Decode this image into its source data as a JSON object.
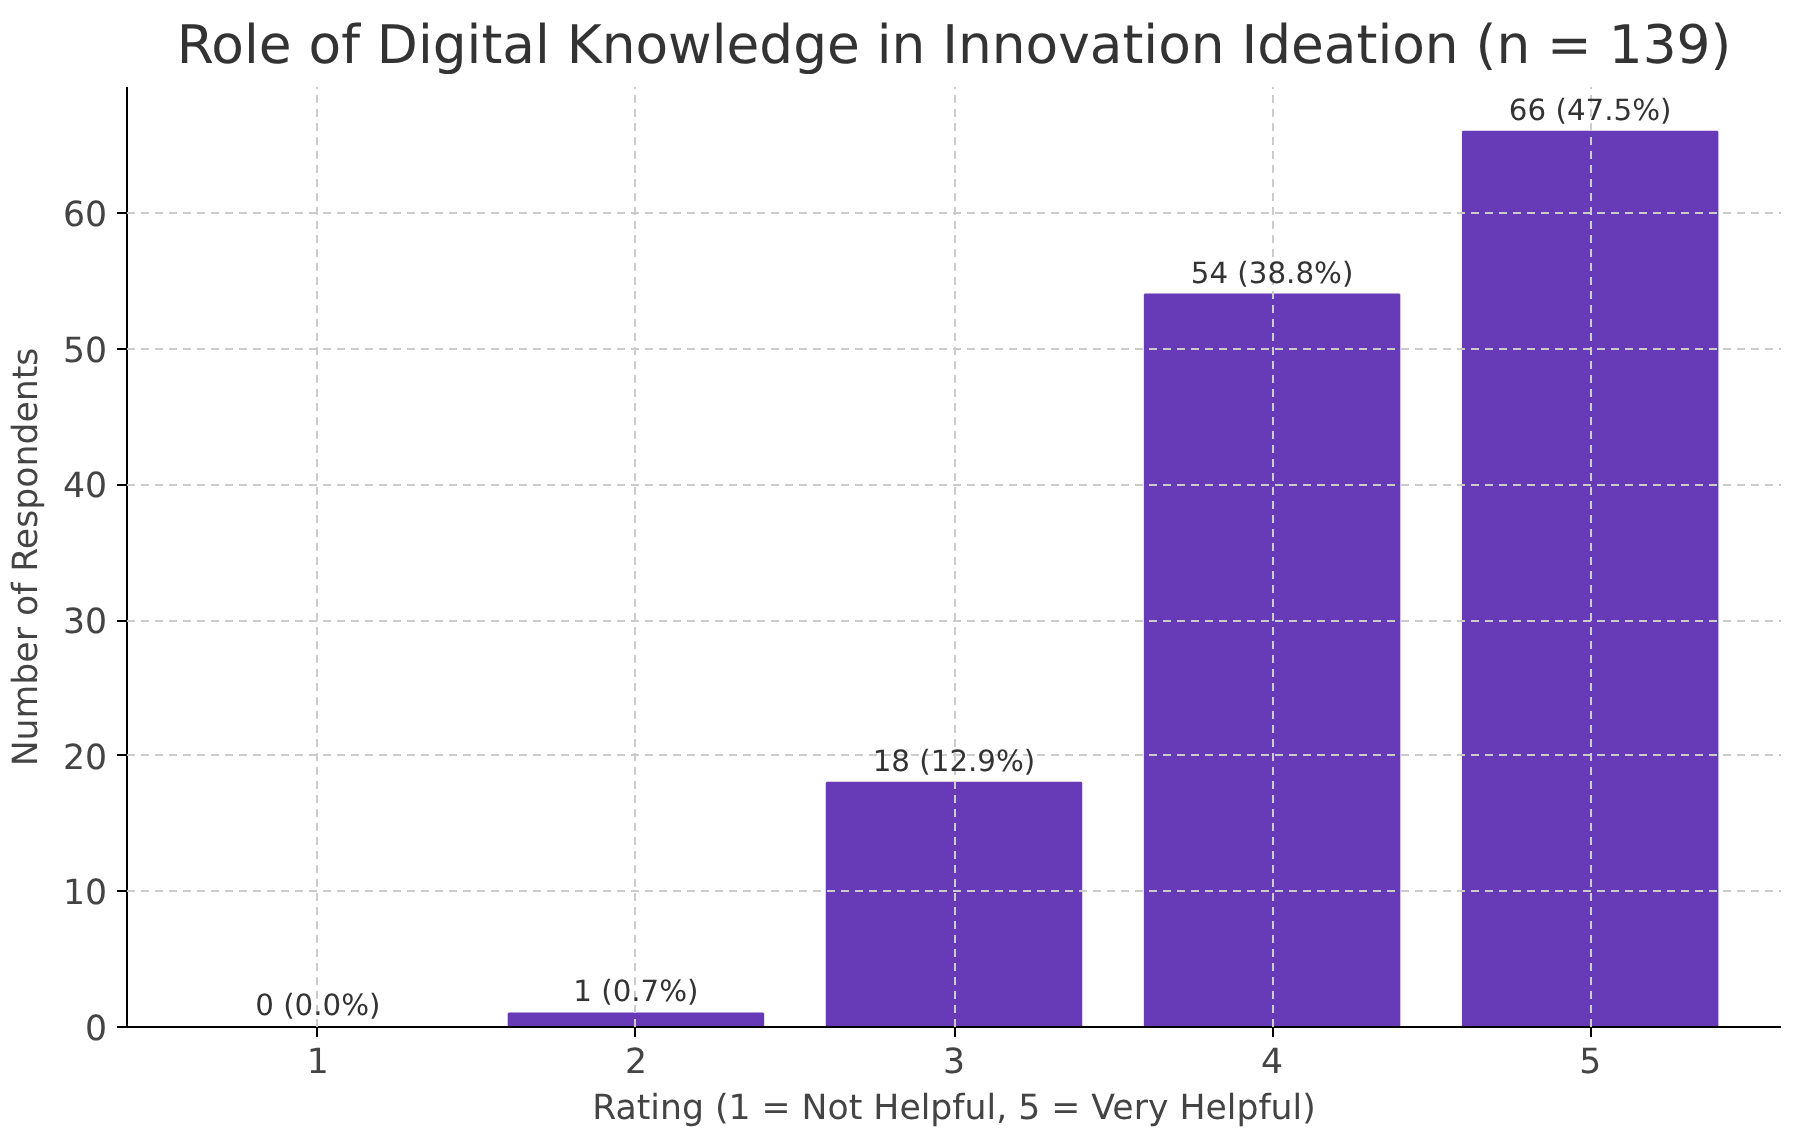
{
  "chart_data": {
    "type": "bar",
    "title": "Role of Digital Knowledge in Innovation Ideation (n = 139)",
    "xlabel": "Rating (1 = Not Helpful, 5 = Very Helpful)",
    "ylabel": "Number of Respondents",
    "categories": [
      "1",
      "2",
      "3",
      "4",
      "5"
    ],
    "values": [
      0,
      1,
      18,
      54,
      66
    ],
    "value_labels": [
      "0 (0.0%)",
      "1 (0.7%)",
      "18 (12.9%)",
      "54 (38.8%)",
      "66 (47.5%)"
    ],
    "color": "#673ab7",
    "ylim": [
      0,
      69.3
    ],
    "yticks": [
      0,
      10,
      20,
      30,
      40,
      50,
      60
    ],
    "grid": true
  }
}
